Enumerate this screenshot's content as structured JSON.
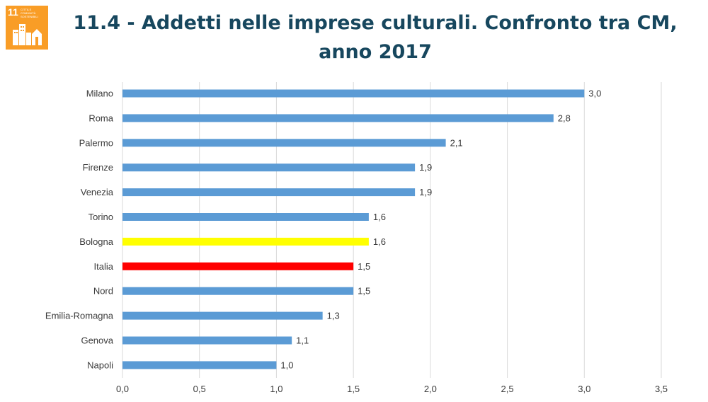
{
  "badge": {
    "number": "11",
    "text": "CITTÀ E COMUNITÀ SOSTENIBILI",
    "color": "#f99d26",
    "icon": "sustainable-cities-icon"
  },
  "title": {
    "line1": "11.4 - Addetti nelle imprese culturali. Confronto tra CM,",
    "line2": "anno 2017"
  },
  "chart_data": {
    "type": "bar",
    "orientation": "horizontal",
    "categories": [
      "Milano",
      "Roma",
      "Palermo",
      "Firenze",
      "Venezia",
      "Torino",
      "Bologna",
      "Italia",
      "Nord",
      "Emilia-Romagna",
      "Genova",
      "Napoli"
    ],
    "values": [
      3.0,
      2.8,
      2.1,
      1.9,
      1.9,
      1.6,
      1.6,
      1.5,
      1.5,
      1.3,
      1.1,
      1.0
    ],
    "value_labels": [
      "3,0",
      "2,8",
      "2,1",
      "1,9",
      "1,9",
      "1,6",
      "1,6",
      "1,5",
      "1,5",
      "1,3",
      "1,1",
      "1,0"
    ],
    "colors": [
      "#5b9bd5",
      "#5b9bd5",
      "#5b9bd5",
      "#5b9bd5",
      "#5b9bd5",
      "#5b9bd5",
      "#ffff00",
      "#ff0000",
      "#5b9bd5",
      "#5b9bd5",
      "#5b9bd5",
      "#5b9bd5"
    ],
    "xlim": [
      0,
      3.5
    ],
    "xticks": [
      0,
      0.5,
      1.0,
      1.5,
      2.0,
      2.5,
      3.0,
      3.5
    ],
    "xtick_labels": [
      "0,0",
      "0,5",
      "1,0",
      "1,5",
      "2,0",
      "2,5",
      "3,0",
      "3,5"
    ],
    "grid": true,
    "title": "11.4 - Addetti nelle imprese culturali. Confronto tra CM, anno 2017",
    "xlabel": "",
    "ylabel": ""
  }
}
